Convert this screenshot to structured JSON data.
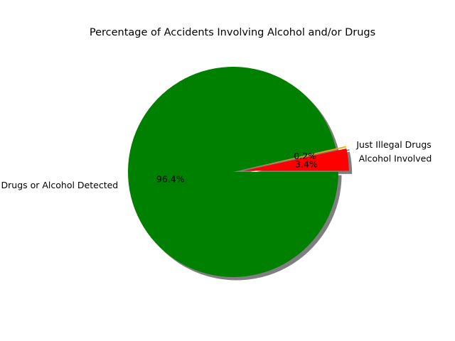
{
  "chart_data": {
    "type": "pie",
    "title": "Percentage of Accidents Involving Alcohol and/or Drugs",
    "slices": [
      {
        "label": "Alcohol Involved",
        "value": 3.4,
        "pct_label": "3.4%",
        "color": "#ff0000",
        "exploded": true
      },
      {
        "label": "Just Illegal Drugs",
        "value": 0.2,
        "pct_label": "0.2%",
        "color": "#ffa500",
        "exploded": true
      },
      {
        "label": "No Drugs or Alcohol Detected",
        "value": 96.4,
        "pct_label": "96.4%",
        "color": "#008000",
        "exploded": false
      }
    ],
    "shadow": true,
    "legend": "none",
    "grid": false
  }
}
